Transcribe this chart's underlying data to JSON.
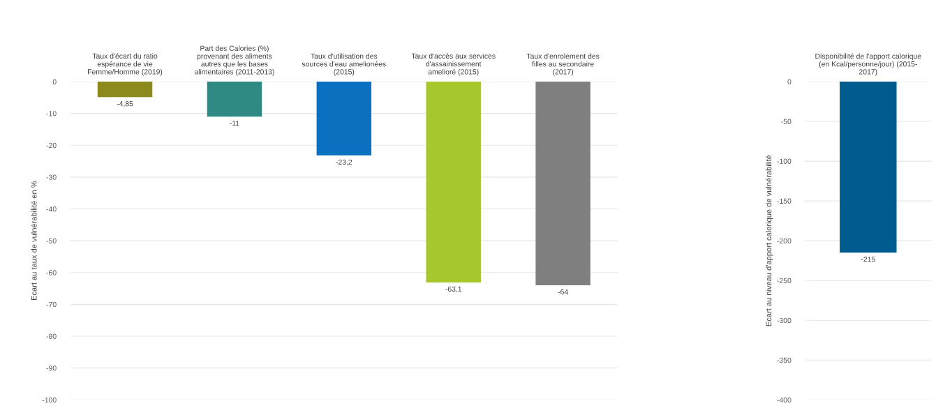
{
  "chart_data": [
    {
      "type": "bar",
      "ylabel": "Ecart au taux de vulnérabilité en %",
      "categories": [
        "Taux d'écart du ratio\nespérance de vie\nFemme/Homme (2019)",
        "Part des Calories (%)\nprovenant des aliments\nautres que les bases\nalimentaires (2011-2013)",
        "Taux d'utilisation des\nsources d'eau amelionées\n(2015)",
        "Taux d'accès aux services\nd'assainissement\namelioré (2015)",
        "Taux d'enrolement des\nfilles au secondaire\n(2017)"
      ],
      "values": [
        -4.85,
        -11,
        -23.2,
        -63.1,
        -64
      ],
      "value_labels": [
        "-4,85",
        "-11",
        "-23,2",
        "-63,1",
        "-64"
      ],
      "colors": [
        "#8c8a1c",
        "#2e8a82",
        "#0a70bf",
        "#a6c82c",
        "#7f7f7f"
      ],
      "ylim": [
        -100,
        0
      ],
      "yticks": [
        0,
        -10,
        -20,
        -30,
        -40,
        -50,
        -60,
        -70,
        -80,
        -90,
        -100
      ],
      "grid": "y"
    },
    {
      "type": "bar",
      "ylabel": "Ecart au niveau d'apport calorique de vulnérabilité",
      "categories": [
        "Disponibilité de l'apport calorique\n(en Kcal/personne/jour) (2015-\n2017)"
      ],
      "values": [
        -215
      ],
      "value_labels": [
        "-215"
      ],
      "colors": [
        "#005b8f"
      ],
      "ylim": [
        -400,
        0
      ],
      "yticks": [
        0,
        -50,
        -100,
        -150,
        -200,
        -250,
        -300,
        -350,
        -400
      ],
      "grid": "y"
    }
  ]
}
